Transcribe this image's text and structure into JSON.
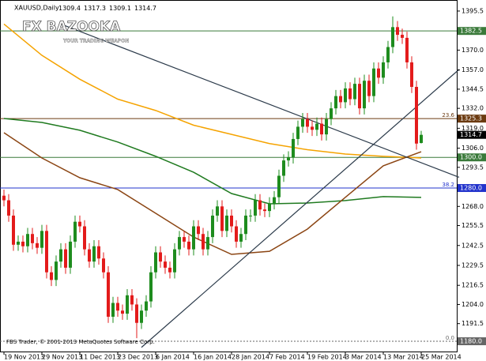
{
  "chart_data": {
    "type": "candlestick",
    "title": "XAUUSD,Daily",
    "watermark": {
      "title": "FX BAZOOKA",
      "subtitle": "YOUR TRADING WEAPON"
    },
    "footer": "FBS Trader, © 2001-2013 MetaQuotes Software Corp.",
    "categories": [
      "19 Nov 2013",
      null,
      null,
      null,
      null,
      null,
      null,
      null,
      "29 Nov 2013",
      null,
      null,
      null,
      null,
      null,
      null,
      null,
      "11 Dec 2013",
      null,
      null,
      null,
      null,
      null,
      null,
      null,
      "23 Dec 2013",
      null,
      null,
      null,
      null,
      null,
      null,
      null,
      "6 Jan 2014",
      null,
      null,
      null,
      null,
      null,
      null,
      null,
      "16 Jan 2014",
      null,
      null,
      null,
      null,
      null,
      null,
      null,
      "28 Jan 2014",
      null,
      null,
      null,
      null,
      null,
      null,
      null,
      "7 Feb 2014",
      null,
      null,
      null,
      null,
      null,
      null,
      null,
      "19 Feb 2014",
      null,
      null,
      null,
      null,
      null,
      null,
      null,
      "3 Mar 2014",
      null,
      null,
      null,
      null,
      null,
      null,
      null,
      "13 Mar 2014",
      null,
      null,
      null,
      null,
      null,
      null,
      null,
      "25 Mar 2014"
    ],
    "open": [
      1275,
      1272,
      1262,
      1243,
      1245,
      1242,
      1250,
      1244,
      1241,
      1252,
      1225,
      1220,
      1232,
      1240,
      1228,
      1245,
      1258,
      1255,
      1240,
      1232,
      1242,
      1234,
      1225,
      1196,
      1205,
      1200,
      1198,
      1210,
      1204,
      1192,
      1200,
      1206,
      1225,
      1238,
      1232,
      1228,
      1225,
      1240,
      1248,
      1245,
      1240,
      1255,
      1250,
      1240,
      1248,
      1262,
      1268,
      1252,
      1262,
      1255,
      1245,
      1250,
      1262,
      1262,
      1272,
      1266,
      1265,
      1270,
      1274,
      1288,
      1298,
      1300,
      1312,
      1320,
      1325,
      1320,
      1318,
      1322,
      1315,
      1325,
      1332,
      1340,
      1336,
      1345,
      1338,
      1348,
      1332,
      1350,
      1340,
      1358,
      1352,
      1362,
      1372,
      1385,
      1380,
      1378,
      1362,
      1346,
      1309.4
    ],
    "high": [
      1279,
      1276,
      1266,
      1249,
      1249,
      1254,
      1254,
      1248,
      1256,
      1256,
      1229,
      1236,
      1244,
      1244,
      1249,
      1262,
      1262,
      1259,
      1244,
      1246,
      1246,
      1238,
      1229,
      1209,
      1209,
      1204,
      1214,
      1214,
      1208,
      1204,
      1210,
      1229,
      1242,
      1242,
      1236,
      1232,
      1244,
      1252,
      1252,
      1249,
      1259,
      1259,
      1254,
      1252,
      1266,
      1272,
      1272,
      1266,
      1266,
      1259,
      1254,
      1266,
      1266,
      1276,
      1276,
      1270,
      1274,
      1278,
      1292,
      1302,
      1304,
      1316,
      1324,
      1329,
      1329,
      1324,
      1326,
      1326,
      1329,
      1336,
      1344,
      1344,
      1349,
      1349,
      1352,
      1352,
      1354,
      1354,
      1362,
      1362,
      1366,
      1376,
      1392,
      1389,
      1384,
      1382,
      1366,
      1350,
      1317.3
    ],
    "low": [
      1268,
      1258,
      1239,
      1239,
      1238,
      1238,
      1240,
      1237,
      1237,
      1221,
      1216,
      1216,
      1228,
      1224,
      1224,
      1241,
      1251,
      1236,
      1228,
      1228,
      1230,
      1221,
      1192,
      1192,
      1196,
      1194,
      1194,
      1200,
      1182,
      1188,
      1196,
      1202,
      1221,
      1228,
      1224,
      1221,
      1221,
      1236,
      1241,
      1236,
      1236,
      1246,
      1236,
      1236,
      1244,
      1258,
      1248,
      1248,
      1251,
      1241,
      1241,
      1246,
      1258,
      1258,
      1262,
      1261,
      1261,
      1266,
      1270,
      1284,
      1294,
      1296,
      1308,
      1316,
      1316,
      1314,
      1314,
      1311,
      1311,
      1321,
      1328,
      1332,
      1332,
      1334,
      1334,
      1328,
      1328,
      1336,
      1336,
      1348,
      1348,
      1358,
      1368,
      1376,
      1374,
      1358,
      1342,
      1305,
      1309.1
    ],
    "close": [
      1272,
      1262,
      1243,
      1245,
      1242,
      1250,
      1244,
      1241,
      1252,
      1225,
      1220,
      1232,
      1240,
      1228,
      1245,
      1258,
      1255,
      1240,
      1232,
      1242,
      1234,
      1225,
      1196,
      1205,
      1200,
      1198,
      1210,
      1204,
      1192,
      1200,
      1206,
      1225,
      1238,
      1232,
      1228,
      1225,
      1240,
      1248,
      1245,
      1240,
      1255,
      1250,
      1240,
      1248,
      1262,
      1268,
      1252,
      1262,
      1255,
      1245,
      1250,
      1262,
      1262,
      1272,
      1266,
      1265,
      1270,
      1274,
      1288,
      1298,
      1300,
      1312,
      1320,
      1325,
      1320,
      1318,
      1322,
      1315,
      1325,
      1332,
      1340,
      1336,
      1345,
      1338,
      1348,
      1332,
      1350,
      1340,
      1358,
      1352,
      1362,
      1372,
      1385,
      1380,
      1378,
      1362,
      1346,
      1309,
      1314.7
    ],
    "up_color": "#1e8c1e",
    "down_color": "#e31b1b",
    "series": [
      {
        "color": "#f5a300",
        "x": [
          0,
          8,
          16,
          24,
          32,
          40,
          48,
          56,
          64,
          72,
          80,
          88
        ],
        "values": [
          1387,
          1366.6,
          1351,
          1338,
          1330.6,
          1321,
          1315,
          1309,
          1305,
          1302.2,
          1300.7,
          1299.6
        ]
      },
      {
        "color": "#1f7a1f",
        "x": [
          0,
          8,
          16,
          24,
          32,
          40,
          48,
          56,
          64,
          72,
          80,
          88
        ],
        "values": [
          1325.4,
          1322.8,
          1317.7,
          1310,
          1300.7,
          1290.3,
          1276.4,
          1269.7,
          1270.2,
          1271.8,
          1274.4,
          1273.9
        ]
      },
      {
        "color": "#8b4513",
        "x": [
          0,
          8,
          16,
          24,
          32,
          40,
          48,
          56,
          64,
          72,
          80,
          88
        ],
        "values": [
          1316.1,
          1299.6,
          1286.7,
          1279,
          1263.5,
          1248,
          1236.7,
          1238.7,
          1253.2,
          1273.9,
          1294.5,
          1303.7
        ]
      }
    ],
    "trendlines": [
      {
        "color": "#2b3a4a",
        "x": [
          12,
          96
        ],
        "values": [
          1387,
          1287
        ]
      },
      {
        "color": "#2b3a4a",
        "x": [
          29,
          96
        ],
        "values": [
          1176,
          1357.4
        ]
      }
    ],
    "levels": [
      {
        "value": 1382.5,
        "color": "#3a7a3a"
      },
      {
        "value": 1325.3,
        "color": "#6b3a10",
        "fib": "23.6"
      },
      {
        "value": 1300,
        "label": "1300.0",
        "color": "#3a7a3a"
      },
      {
        "value": 1280,
        "label": "1280.0",
        "color": "#2233cc",
        "fib": "38.2"
      },
      {
        "value": 1180,
        "label": "1180.0",
        "color": "#666666",
        "fib": "0.0"
      }
    ],
    "ylim": [
      1173.3,
      1402.7
    ],
    "yticks": [
      1395.5,
      {
        "value": 1370,
        "label": "1370.0"
      },
      {
        "value": 1357,
        "label": "1357.0"
      },
      1344.5,
      {
        "value": 1332,
        "label": "1332.0"
      },
      {
        "value": 1319,
        "label": "1319.0"
      },
      {
        "value": 1306,
        "label": "1306.0"
      },
      1293.5,
      {
        "value": 1268,
        "label": "1268.0"
      },
      1255.5,
      1242.5,
      1229.5,
      1216.5,
      {
        "value": 1204,
        "label": "1204.0"
      },
      1191.5
    ]
  }
}
